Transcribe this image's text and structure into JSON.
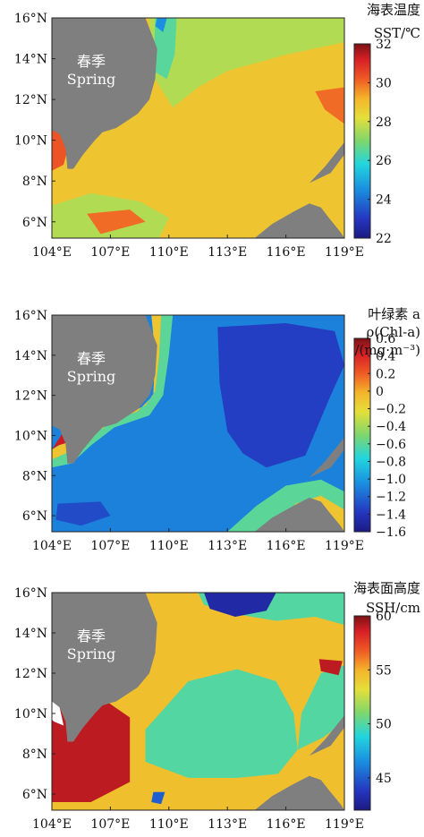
{
  "chart_data": [
    {
      "type": "heatmap",
      "variable": "SST",
      "colorbar_title": [
        "海表温度",
        "SST/℃"
      ],
      "map_label": [
        "春季",
        "Spring"
      ],
      "x_ticks": [
        "104°E",
        "107°E",
        "110°E",
        "113°E",
        "116°E",
        "119°E"
      ],
      "y_ticks": [
        "16°N",
        "14°N",
        "12°N",
        "10°N",
        "8°N",
        "6°N"
      ],
      "xlim": [
        104,
        119
      ],
      "ylim": [
        5.2,
        16
      ],
      "colorbar_ticks": [
        "32",
        "30",
        "28",
        "26",
        "24",
        "22"
      ],
      "colorbar_range": [
        22,
        32
      ],
      "background_value": 28.8,
      "regions": [
        {
          "name": "northern-warm-band",
          "value": 27.6,
          "polygon": [
            [
              111,
              16
            ],
            [
              119,
              16
            ],
            [
              119,
              14.8
            ],
            [
              116,
              14.2
            ],
            [
              113,
              13.4
            ],
            [
              111.5,
              12.6
            ],
            [
              110.2,
              11.6
            ],
            [
              109.3,
              13
            ],
            [
              109,
              16
            ]
          ]
        },
        {
          "name": "coastal-cool-tongue",
          "value": 26.5,
          "polygon": [
            [
              109.3,
              16
            ],
            [
              110.4,
              16
            ],
            [
              110.3,
              14.2
            ],
            [
              109.9,
              13
            ],
            [
              109.2,
              13.4
            ]
          ]
        },
        {
          "name": "coastal-cold-core",
          "value": 24.5,
          "polygon": [
            [
              109.4,
              16
            ],
            [
              109.9,
              16
            ],
            [
              109.7,
              15.3
            ],
            [
              109.3,
              15.6
            ]
          ]
        },
        {
          "name": "southwest-cool-patch",
          "value": 27.6,
          "polygon": [
            [
              104,
              6.8
            ],
            [
              106,
              7.4
            ],
            [
              108.5,
              7
            ],
            [
              110,
              6.2
            ],
            [
              109.5,
              5.2
            ],
            [
              104,
              5.2
            ]
          ]
        },
        {
          "name": "west-warm-coast",
          "value": 30.3,
          "polygon": [
            [
              104,
              10.6
            ],
            [
              105,
              10.2
            ],
            [
              104.6,
              8.8
            ],
            [
              104,
              8.5
            ]
          ]
        },
        {
          "name": "southwest-warm-patch",
          "value": 30,
          "polygon": [
            [
              105.8,
              6.4
            ],
            [
              108,
              6.6
            ],
            [
              108.8,
              6
            ],
            [
              106.5,
              5.4
            ]
          ]
        },
        {
          "name": "east-warm-patch",
          "value": 30,
          "polygon": [
            [
              117.5,
              12.4
            ],
            [
              119,
              12.6
            ],
            [
              119,
              10.8
            ],
            [
              118,
              11.5
            ]
          ]
        }
      ]
    },
    {
      "type": "heatmap",
      "variable": "Chl-a",
      "colorbar_title": [
        "叶绿素 a",
        "ρ(Chl-a)",
        "/(mg·m⁻³)"
      ],
      "map_label": [
        "春季",
        "Spring"
      ],
      "x_ticks": [
        "104°E",
        "107°E",
        "110°E",
        "113°E",
        "116°E",
        "119°E"
      ],
      "y_ticks": [
        "16°N",
        "14°N",
        "12°N",
        "10°N",
        "8°N",
        "6°N"
      ],
      "xlim": [
        104,
        119
      ],
      "ylim": [
        5.2,
        16
      ],
      "colorbar_ticks": [
        "0.6",
        "0.4",
        "0.2",
        "0",
        "−0.2",
        "−0.4",
        "−0.6",
        "−0.8",
        "−1.0",
        "−1.2",
        "−1.4",
        "−1.6"
      ],
      "colorbar_range": [
        -1.6,
        0.6
      ],
      "background_value": -1.1,
      "regions": [
        {
          "name": "central-low-chl",
          "value": -1.35,
          "polygon": [
            [
              112.5,
              15.4
            ],
            [
              116,
              15.6
            ],
            [
              118.5,
              15.2
            ],
            [
              119,
              13.5
            ],
            [
              118.3,
              12
            ],
            [
              117,
              9
            ],
            [
              115,
              8.4
            ],
            [
              113.8,
              9.1
            ],
            [
              113,
              10.2
            ],
            [
              112.6,
              12.6
            ]
          ]
        },
        {
          "name": "southwest-low-chl",
          "value": -1.3,
          "polygon": [
            [
              104.3,
              6.6
            ],
            [
              106.5,
              6.7
            ],
            [
              107,
              6
            ],
            [
              105.5,
              5.5
            ],
            [
              104.2,
              5.8
            ]
          ]
        },
        {
          "name": "coastal-band-outer",
          "value": -0.6,
          "polygon": [
            [
              109.2,
              16
            ],
            [
              110.2,
              16
            ],
            [
              110,
              14
            ],
            [
              109.7,
              12
            ],
            [
              109,
              11
            ],
            [
              107.2,
              10.4
            ],
            [
              106,
              9.5
            ],
            [
              105,
              8.6
            ],
            [
              104,
              8.4
            ],
            [
              104,
              9
            ],
            [
              105.5,
              10
            ],
            [
              106.7,
              10.6
            ],
            [
              108.4,
              11.2
            ],
            [
              109.2,
              12
            ],
            [
              109.3,
              14
            ]
          ]
        },
        {
          "name": "coastal-band-inner",
          "value": -0.1,
          "polygon": [
            [
              109.1,
              16
            ],
            [
              109.6,
              16
            ],
            [
              109.5,
              14
            ],
            [
              109.3,
              12.2
            ],
            [
              108.8,
              11.5
            ],
            [
              107.5,
              10.9
            ],
            [
              106.5,
              10.3
            ],
            [
              105.4,
              9.4
            ],
            [
              104,
              8.8
            ],
            [
              104,
              9.3
            ],
            [
              105.4,
              10.1
            ],
            [
              106.7,
              10.6
            ],
            [
              108.4,
              11.2
            ],
            [
              109.2,
              12
            ],
            [
              109.3,
              14
            ]
          ]
        },
        {
          "name": "coastal-band-core",
          "value": 0.45,
          "polygon": [
            [
              104,
              9.3
            ],
            [
              104.6,
              10.2
            ],
            [
              105,
              9.7
            ],
            [
              104.3,
              9.5
            ]
          ]
        },
        {
          "name": "southeast-band-outer",
          "value": -0.6,
          "polygon": [
            [
              113,
              5.2
            ],
            [
              114.5,
              6.5
            ],
            [
              116,
              7.5
            ],
            [
              117.8,
              7.8
            ],
            [
              119,
              7.2
            ],
            [
              119,
              5.2
            ]
          ]
        },
        {
          "name": "southeast-band-inner",
          "value": -0.1,
          "polygon": [
            [
              115.5,
              5.2
            ],
            [
              116.5,
              6.6
            ],
            [
              117.8,
              7
            ],
            [
              119,
              6.3
            ],
            [
              119,
              5.2
            ]
          ]
        }
      ]
    },
    {
      "type": "heatmap",
      "variable": "SSH",
      "colorbar_title": [
        "海表面高度",
        "SSH/cm"
      ],
      "map_label": [
        "春季",
        "Spring"
      ],
      "x_ticks": [
        "104°E",
        "107°E",
        "110°E",
        "113°E",
        "116°E",
        "119°E"
      ],
      "y_ticks": [
        "16°N",
        "14°N",
        "12°N",
        "10°N",
        "8°N",
        "6°N"
      ],
      "xlim": [
        104,
        119
      ],
      "ylim": [
        5.2,
        16
      ],
      "colorbar_ticks": [
        "60",
        "55",
        "50",
        "45"
      ],
      "colorbar_range": [
        42,
        60
      ],
      "background_value": 54.5,
      "regions": [
        {
          "name": "northern-low-ssh",
          "value": 50,
          "polygon": [
            [
              111.5,
              16
            ],
            [
              119,
              16
            ],
            [
              119,
              14.4
            ],
            [
              117.5,
              14.8
            ],
            [
              115.5,
              14.6
            ],
            [
              113,
              15
            ],
            [
              111.8,
              15.4
            ]
          ]
        },
        {
          "name": "northern-very-low-ssh",
          "value": 43,
          "polygon": [
            [
              111.8,
              16
            ],
            [
              115.5,
              16
            ],
            [
              115,
              15.1
            ],
            [
              113.4,
              14.8
            ],
            [
              112.1,
              15.2
            ]
          ]
        },
        {
          "name": "central-low-ssh",
          "value": 50,
          "polygon": [
            [
              108.8,
              9.2
            ],
            [
              111,
              11.6
            ],
            [
              113.5,
              12.2
            ],
            [
              115.5,
              11.6
            ],
            [
              116.4,
              10
            ],
            [
              116.6,
              8.2
            ],
            [
              115.6,
              7
            ],
            [
              113.5,
              6.8
            ],
            [
              111,
              6.8
            ],
            [
              108.8,
              7.6
            ]
          ]
        },
        {
          "name": "central-low-tail",
          "value": 50,
          "polygon": [
            [
              116.6,
              8.2
            ],
            [
              116.8,
              10
            ],
            [
              117.8,
              12
            ],
            [
              119,
              12.4
            ],
            [
              119,
              9.6
            ],
            [
              117.9,
              8.8
            ]
          ]
        },
        {
          "name": "west-high-ssh",
          "value": 59,
          "polygon": [
            [
              104,
              10.3
            ],
            [
              106.5,
              10.8
            ],
            [
              108,
              9.8
            ],
            [
              108,
              6.6
            ],
            [
              106,
              5.6
            ],
            [
              104,
              5.6
            ]
          ]
        },
        {
          "name": "east-high-patch",
          "value": 59,
          "polygon": [
            [
              117.7,
              12.7
            ],
            [
              118.9,
              12.6
            ],
            [
              118.7,
              11.9
            ],
            [
              117.8,
              12.1
            ]
          ]
        },
        {
          "name": "small-low-dot",
          "value": 45,
          "polygon": [
            [
              109.2,
              6.1
            ],
            [
              109.8,
              6.1
            ],
            [
              109.6,
              5.5
            ],
            [
              109.1,
              5.6
            ]
          ]
        }
      ]
    }
  ]
}
